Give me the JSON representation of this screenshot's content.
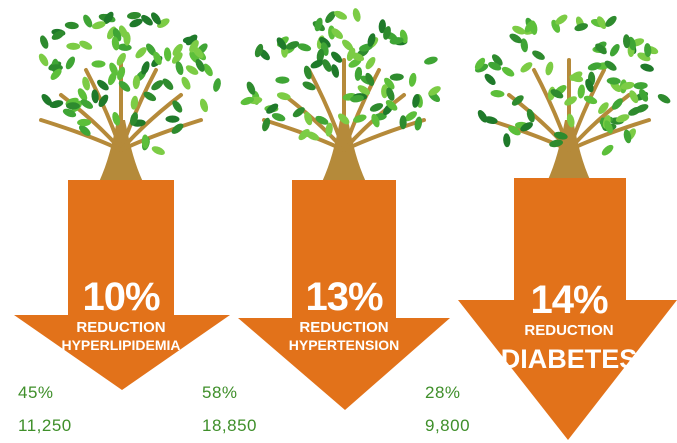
{
  "items": [
    {
      "percent": "10%",
      "reduction": "REDUCTION",
      "condition": "HYPERLIPIDEMIA",
      "share": "45%",
      "count": "11,250"
    },
    {
      "percent": "13%",
      "reduction": "REDUCTION",
      "condition": "HYPERTENSION",
      "share": "58%",
      "count": "18,850"
    },
    {
      "percent": "14%",
      "reduction": "REDUCTION",
      "condition": "DIABETES",
      "share": "28%",
      "count": "9,800"
    }
  ]
}
